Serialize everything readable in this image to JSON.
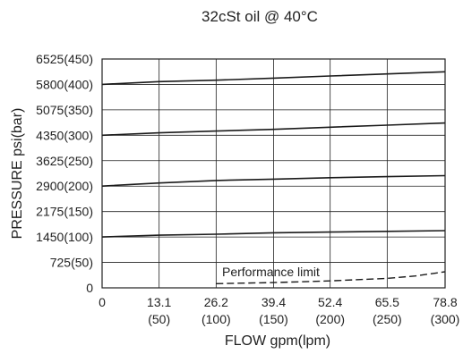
{
  "chart_data": {
    "type": "line",
    "title": "32cSt oil @ 40°C",
    "xlabel": "FLOW gpm(lpm)",
    "ylabel": "PRESSURE psi(bar)",
    "xlim": [
      0,
      78.8
    ],
    "ylim": [
      0,
      6525
    ],
    "x_ticks": [
      {
        "value": 0,
        "label": "0",
        "sublabel": ""
      },
      {
        "value": 13.1,
        "label": "13.1",
        "sublabel": "(50)"
      },
      {
        "value": 26.2,
        "label": "26.2",
        "sublabel": "(100)"
      },
      {
        "value": 39.4,
        "label": "39.4",
        "sublabel": "(150)"
      },
      {
        "value": 52.4,
        "label": "52.4",
        "sublabel": "(200)"
      },
      {
        "value": 65.5,
        "label": "65.5",
        "sublabel": "(250)"
      },
      {
        "value": 78.8,
        "label": "78.8",
        "sublabel": "(300)"
      }
    ],
    "y_ticks": [
      {
        "value": 0,
        "label": "0"
      },
      {
        "value": 725,
        "label": "725(50)"
      },
      {
        "value": 1450,
        "label": "1450(100)"
      },
      {
        "value": 2175,
        "label": "2175(150)"
      },
      {
        "value": 2900,
        "label": "2900(200)"
      },
      {
        "value": 3625,
        "label": "3625(250)"
      },
      {
        "value": 4350,
        "label": "4350(300)"
      },
      {
        "value": 5075,
        "label": "5075(350)"
      },
      {
        "value": 5800,
        "label": "5800(400)"
      },
      {
        "value": 6525,
        "label": "6525(450)"
      }
    ],
    "grid": true,
    "series": [
      {
        "x": [
          0,
          13.1,
          26.2,
          39.4,
          52.4,
          65.5,
          78.8
        ],
        "y": [
          5800,
          5880,
          5920,
          5980,
          6040,
          6100,
          6160
        ]
      },
      {
        "x": [
          0,
          13.1,
          26.2,
          39.4,
          52.4,
          65.5,
          78.8
        ],
        "y": [
          4350,
          4420,
          4470,
          4520,
          4580,
          4640,
          4700
        ]
      },
      {
        "x": [
          0,
          13.1,
          26.2,
          39.4,
          52.4,
          65.5,
          78.8
        ],
        "y": [
          2900,
          2990,
          3060,
          3100,
          3140,
          3170,
          3200
        ]
      },
      {
        "x": [
          0,
          13.1,
          26.2,
          39.4,
          52.4,
          65.5,
          78.8
        ],
        "y": [
          1450,
          1500,
          1530,
          1570,
          1590,
          1610,
          1630
        ]
      }
    ],
    "annotations": [
      {
        "name": "Performance limit",
        "text": "Performance limit",
        "style": "dashed",
        "x": [
          26.2,
          39.4,
          52.4,
          65.5,
          72.0,
          78.8
        ],
        "y": [
          120,
          150,
          200,
          270,
          340,
          460
        ]
      }
    ]
  }
}
